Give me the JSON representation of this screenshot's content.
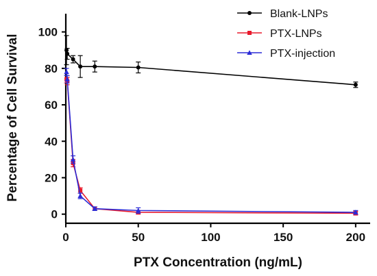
{
  "chart_data": {
    "type": "line",
    "title": "",
    "xlabel": "PTX Concentration (ng/mL)",
    "ylabel": "Percentage of Cell Survival",
    "xlim": [
      0,
      210
    ],
    "ylim": [
      -5,
      110
    ],
    "xticks": [
      0,
      50,
      100,
      150,
      200
    ],
    "yticks": [
      0,
      20,
      40,
      60,
      80,
      100
    ],
    "grid": false,
    "legend_position": "top-right",
    "series": [
      {
        "name": "Blank-LNPs",
        "color": "#000000",
        "marker": "circle",
        "x": [
          0.5,
          1,
          5,
          10,
          20,
          50,
          200
        ],
        "y": [
          90,
          88,
          85,
          81,
          81,
          80.5,
          71
        ],
        "err": [
          8,
          3,
          2,
          6,
          3,
          3,
          1.5
        ]
      },
      {
        "name": "PTX-LNPs",
        "color": "#e8192c",
        "marker": "square",
        "x": [
          0.5,
          1,
          5,
          10,
          20,
          50,
          200
        ],
        "y": [
          74,
          73,
          28,
          13,
          3,
          1,
          0.5
        ],
        "err": [
          2,
          2,
          2,
          1.5,
          1,
          1,
          1
        ]
      },
      {
        "name": "PTX-injection",
        "color": "#2b2bd6",
        "marker": "triangle",
        "x": [
          0.5,
          1,
          5,
          10,
          20,
          50,
          200
        ],
        "y": [
          78,
          74,
          30,
          10,
          3,
          2,
          1
        ],
        "err": [
          2,
          2,
          2,
          1.5,
          1,
          1.5,
          1
        ]
      }
    ]
  }
}
